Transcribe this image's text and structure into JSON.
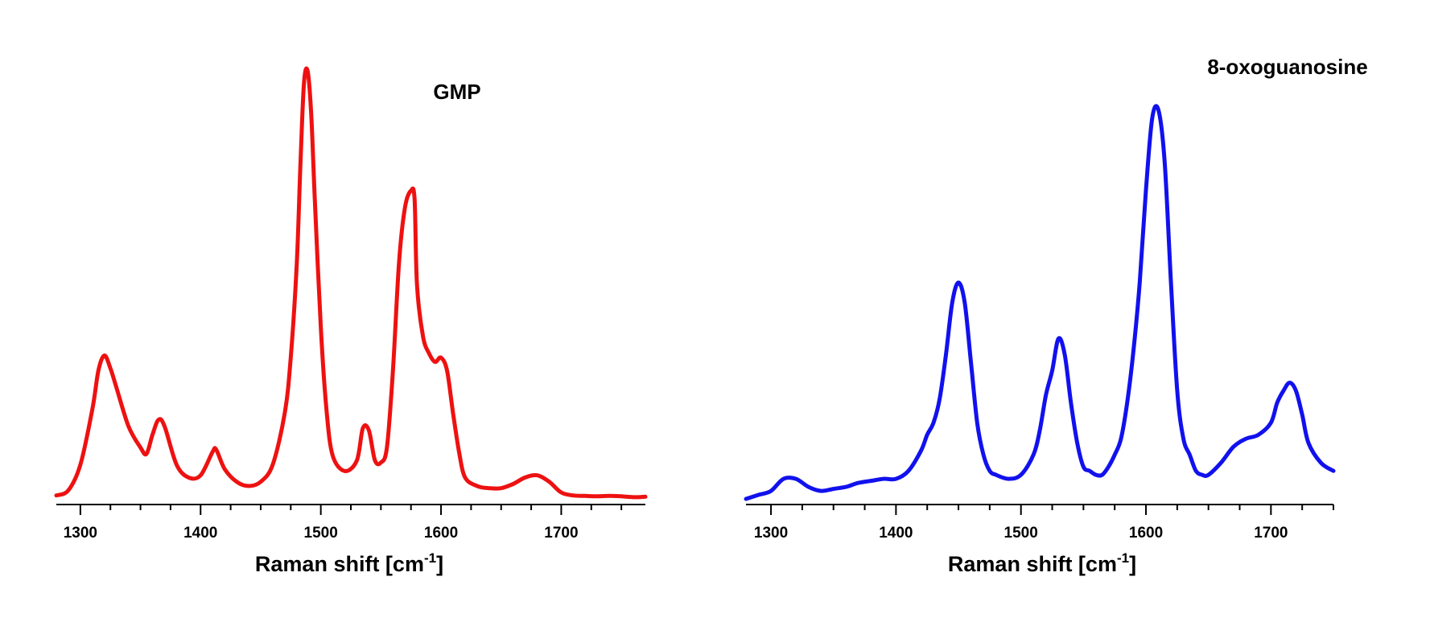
{
  "chart_data": [
    {
      "type": "line",
      "title": "GMP",
      "xlabel": {
        "text": "Raman shift [cm",
        "superscript": "-1",
        "suffix": "]"
      },
      "ylabel": "",
      "xlim": [
        1280,
        1770
      ],
      "ylim": [
        0,
        1.0
      ],
      "xticks": [
        "1300",
        "1400",
        "1500",
        "1600",
        "1700"
      ],
      "xtick_values": [
        1300,
        1400,
        1500,
        1600,
        1700
      ],
      "color": "#ee1111",
      "grid": false,
      "legend": "none",
      "series": [
        {
          "x": [
            1280,
            1290,
            1300,
            1310,
            1315,
            1320,
            1325,
            1330,
            1340,
            1350,
            1355,
            1360,
            1365,
            1370,
            1380,
            1390,
            1400,
            1410,
            1413,
            1420,
            1430,
            1440,
            1450,
            1460,
            1470,
            1475,
            1480,
            1483,
            1486,
            1489,
            1492,
            1495,
            1500,
            1505,
            1510,
            1520,
            1530,
            1535,
            1540,
            1545,
            1550,
            1555,
            1560,
            1565,
            1570,
            1575,
            1578,
            1580,
            1585,
            1590,
            1595,
            1600,
            1605,
            1610,
            1615,
            1620,
            1630,
            1640,
            1650,
            1660,
            1670,
            1680,
            1690,
            1700,
            1710,
            1720,
            1730,
            1740,
            1750,
            1760,
            1770
          ],
          "y": [
            0.008,
            0.02,
            0.08,
            0.21,
            0.3,
            0.335,
            0.305,
            0.26,
            0.17,
            0.12,
            0.105,
            0.15,
            0.185,
            0.17,
            0.08,
            0.05,
            0.055,
            0.11,
            0.115,
            0.07,
            0.04,
            0.03,
            0.04,
            0.08,
            0.2,
            0.33,
            0.55,
            0.78,
            0.97,
            1.0,
            0.9,
            0.7,
            0.4,
            0.2,
            0.1,
            0.065,
            0.09,
            0.165,
            0.16,
            0.09,
            0.085,
            0.12,
            0.3,
            0.55,
            0.68,
            0.72,
            0.7,
            0.5,
            0.38,
            0.34,
            0.32,
            0.33,
            0.3,
            0.2,
            0.11,
            0.05,
            0.03,
            0.025,
            0.025,
            0.035,
            0.05,
            0.055,
            0.04,
            0.015,
            0.008,
            0.007,
            0.006,
            0.007,
            0.006,
            0.004,
            0.005
          ]
        }
      ]
    },
    {
      "type": "line",
      "title": "8-oxoguanosine",
      "xlabel": {
        "text": "Raman shift [cm",
        "superscript": "-1",
        "suffix": "]"
      },
      "ylabel": "",
      "xlim": [
        1280,
        1750
      ],
      "ylim": [
        0,
        1.0
      ],
      "xticks": [
        "1300",
        "1400",
        "1500",
        "1600",
        "1700"
      ],
      "xtick_values": [
        1300,
        1400,
        1500,
        1600,
        1700
      ],
      "color": "#1111ee",
      "grid": false,
      "legend": "none",
      "series": [
        {
          "x": [
            1280,
            1290,
            1300,
            1310,
            1320,
            1330,
            1340,
            1350,
            1360,
            1370,
            1380,
            1390,
            1400,
            1410,
            1420,
            1425,
            1430,
            1435,
            1440,
            1445,
            1450,
            1455,
            1460,
            1465,
            1470,
            1475,
            1480,
            1490,
            1500,
            1510,
            1515,
            1520,
            1525,
            1530,
            1535,
            1540,
            1545,
            1550,
            1555,
            1560,
            1565,
            1570,
            1575,
            1580,
            1585,
            1590,
            1595,
            1600,
            1605,
            1610,
            1615,
            1620,
            1625,
            1630,
            1635,
            1640,
            1645,
            1650,
            1660,
            1670,
            1680,
            1690,
            1700,
            1705,
            1710,
            1715,
            1720,
            1725,
            1730,
            1740,
            1750
          ],
          "y": [
            0.01,
            0.02,
            0.03,
            0.06,
            0.06,
            0.04,
            0.03,
            0.035,
            0.04,
            0.05,
            0.055,
            0.06,
            0.06,
            0.08,
            0.13,
            0.17,
            0.2,
            0.26,
            0.37,
            0.5,
            0.55,
            0.5,
            0.35,
            0.2,
            0.12,
            0.08,
            0.07,
            0.06,
            0.07,
            0.12,
            0.18,
            0.27,
            0.33,
            0.41,
            0.37,
            0.25,
            0.15,
            0.09,
            0.08,
            0.07,
            0.07,
            0.09,
            0.12,
            0.16,
            0.25,
            0.38,
            0.55,
            0.78,
            0.96,
            0.98,
            0.85,
            0.55,
            0.28,
            0.16,
            0.12,
            0.08,
            0.07,
            0.07,
            0.1,
            0.14,
            0.16,
            0.17,
            0.2,
            0.25,
            0.28,
            0.3,
            0.28,
            0.22,
            0.15,
            0.1,
            0.08
          ]
        }
      ]
    }
  ]
}
